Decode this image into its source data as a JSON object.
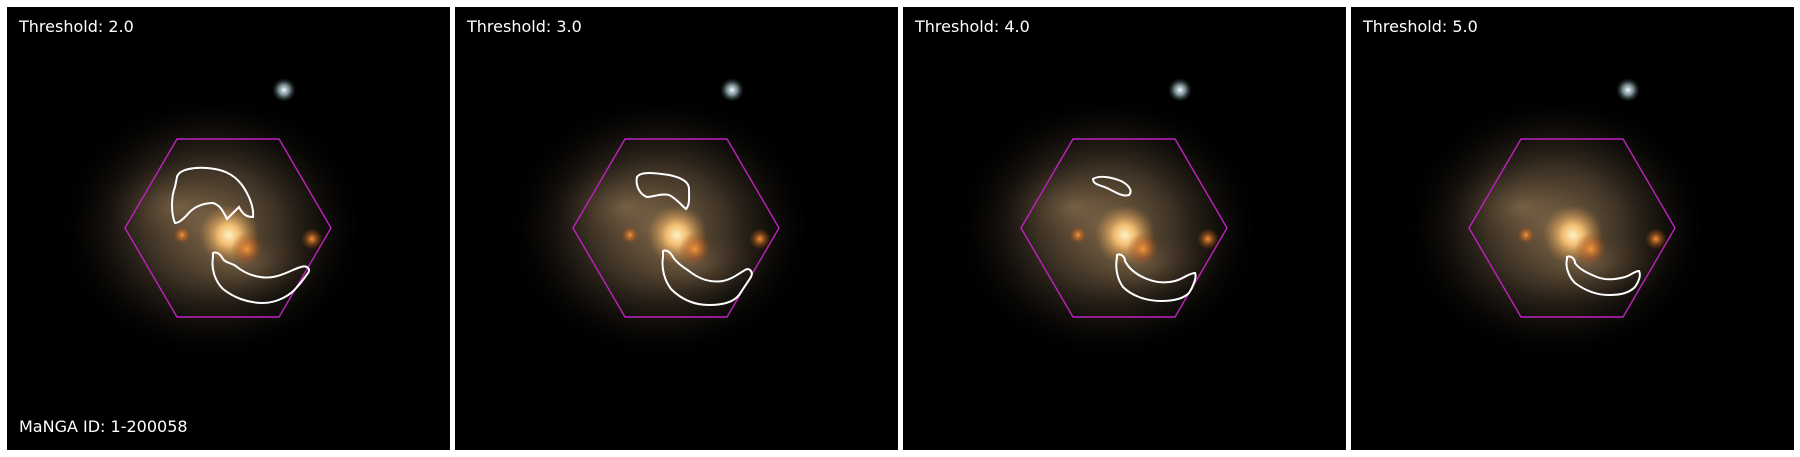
{
  "panels": [
    {
      "threshold_label": "Threshold: 2.0"
    },
    {
      "threshold_label": "Threshold: 3.0"
    },
    {
      "threshold_label": "Threshold: 4.0"
    },
    {
      "threshold_label": "Threshold: 5.0"
    }
  ],
  "manga_id_label": "MaNGA ID: 1-200058",
  "colors": {
    "background": "#000000",
    "hexagon": "#c020c0",
    "contour": "#ffffff",
    "galaxy_core": "#ffd79a",
    "clump": "#e07a2a",
    "star": "#d8ecf0"
  },
  "icons": {
    "ifu_footprint": "hexagon-outline",
    "contour": "white-contour-outline"
  }
}
